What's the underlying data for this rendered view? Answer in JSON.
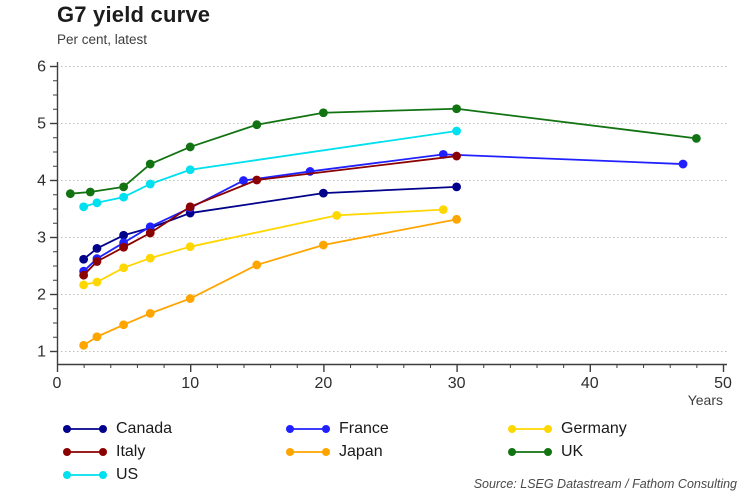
{
  "header": {
    "title": "G7 yield curve",
    "subtitle": "Per cent, latest"
  },
  "source": "Source: LSEG Datastream / Fathom Consulting",
  "chart_data": {
    "type": "line",
    "title": "G7 yield curve",
    "subtitle": "Per cent, latest",
    "xlabel": "Years",
    "ylabel": "Per cent",
    "xlim": [
      0,
      50
    ],
    "ylim": [
      1,
      6
    ],
    "x_ticks": [
      0,
      10,
      20,
      30,
      40,
      50
    ],
    "y_ticks": [
      1,
      2,
      3,
      4,
      5,
      6
    ],
    "grid": "horizontal-dotted",
    "legend_position": "bottom",
    "marker": "filled-circle",
    "series": [
      {
        "name": "Canada",
        "color": "#00008b",
        "points": [
          [
            2,
            2.61
          ],
          [
            3,
            2.8
          ],
          [
            5,
            3.03
          ],
          [
            7,
            3.16
          ],
          [
            10,
            3.42
          ],
          [
            20,
            3.77
          ],
          [
            30,
            3.88
          ]
        ]
      },
      {
        "name": "France",
        "color": "#2121ff",
        "points": [
          [
            2,
            2.4
          ],
          [
            3,
            2.62
          ],
          [
            5,
            2.9
          ],
          [
            7,
            3.18
          ],
          [
            10,
            3.51
          ],
          [
            14,
            3.99
          ],
          [
            19,
            4.15
          ],
          [
            29,
            4.45
          ],
          [
            47,
            4.28
          ]
        ]
      },
      {
        "name": "Germany",
        "color": "#ffd700",
        "points": [
          [
            2,
            2.16
          ],
          [
            3,
            2.21
          ],
          [
            5,
            2.46
          ],
          [
            7,
            2.63
          ],
          [
            10,
            2.83
          ],
          [
            21,
            3.38
          ],
          [
            29,
            3.48
          ]
        ]
      },
      {
        "name": "Italy",
        "color": "#8b0000",
        "points": [
          [
            2,
            2.33
          ],
          [
            3,
            2.57
          ],
          [
            5,
            2.82
          ],
          [
            7,
            3.07
          ],
          [
            10,
            3.53
          ],
          [
            15,
            4.0
          ],
          [
            30,
            4.42
          ]
        ]
      },
      {
        "name": "Japan",
        "color": "#ffa500",
        "points": [
          [
            2,
            1.1
          ],
          [
            3,
            1.25
          ],
          [
            5,
            1.46
          ],
          [
            7,
            1.66
          ],
          [
            10,
            1.92
          ],
          [
            15,
            2.51
          ],
          [
            20,
            2.86
          ],
          [
            30,
            3.31
          ]
        ]
      },
      {
        "name": "UK",
        "color": "#127312",
        "points": [
          [
            1,
            3.76
          ],
          [
            2.5,
            3.79
          ],
          [
            5,
            3.88
          ],
          [
            7,
            4.28
          ],
          [
            10,
            4.58
          ],
          [
            15,
            4.97
          ],
          [
            20,
            5.18
          ],
          [
            30,
            5.25
          ],
          [
            48,
            4.73
          ]
        ]
      },
      {
        "name": "US",
        "color": "#00e0ee",
        "points": [
          [
            2,
            3.53
          ],
          [
            3,
            3.6
          ],
          [
            5,
            3.7
          ],
          [
            7,
            3.93
          ],
          [
            10,
            4.18
          ],
          [
            30,
            4.86
          ]
        ]
      }
    ]
  }
}
